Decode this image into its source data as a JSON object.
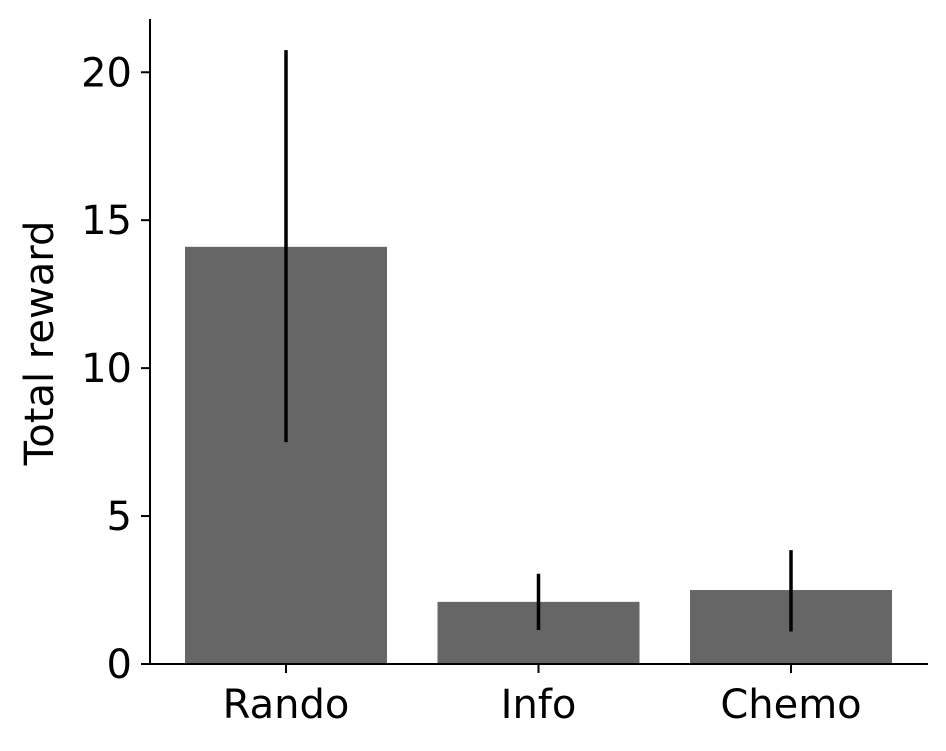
{
  "chart_data": {
    "type": "bar",
    "title": "",
    "xlabel": "",
    "ylabel": "Total reward",
    "categories": [
      "Rando",
      "Info",
      "Chemo"
    ],
    "values": [
      14.1,
      2.1,
      2.5
    ],
    "error_low": [
      7.5,
      1.15,
      1.1
    ],
    "error_high": [
      20.75,
      3.05,
      3.85
    ],
    "ylim": [
      0,
      21.8
    ],
    "yticks": [
      0,
      5,
      10,
      15,
      20
    ],
    "grid": false,
    "legend": "none",
    "bar_color": "#666666",
    "error_color": "#000000",
    "axis_color": "#000000"
  }
}
